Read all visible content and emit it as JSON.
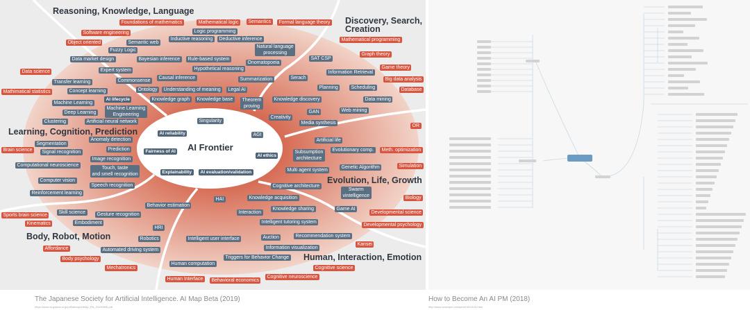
{
  "left_panel": {
    "headings": [
      "Reasoning, Knowledge, Language",
      "Discovery, Search,\nCreation",
      "Learning, Cognition, Prediction",
      "Evolution, Life, Growth",
      "Body, Robot, Motion",
      "Human, Interaction, Emotion"
    ],
    "center_title": "AI Frontier",
    "labels": [
      {
        "t": "Foundations of mathematics",
        "k": "r"
      },
      {
        "t": "Mathematical logic",
        "k": "r"
      },
      {
        "t": "Semantics",
        "k": "r"
      },
      {
        "t": "Formal language theory",
        "k": "r"
      },
      {
        "t": "Software engineering",
        "k": "r"
      },
      {
        "t": "Logic programming",
        "k": "b"
      },
      {
        "t": "Inductive reasoning",
        "k": "b"
      },
      {
        "t": "Deductive inference",
        "k": "b"
      },
      {
        "t": "Object oriented",
        "k": "r"
      },
      {
        "t": "Semantic web",
        "k": "b"
      },
      {
        "t": "Fuzzy Logic",
        "k": "b"
      },
      {
        "t": "Natural language\nprocessing",
        "k": "b"
      },
      {
        "t": "Data market design",
        "k": "b"
      },
      {
        "t": "Bayesian inference",
        "k": "b"
      },
      {
        "t": "Rule-based system",
        "k": "b"
      },
      {
        "t": "Onomatopoeia",
        "k": "b"
      },
      {
        "t": "SAT CSP",
        "k": "b"
      },
      {
        "t": "Hypothetical reasoning",
        "k": "b"
      },
      {
        "t": "Expert system",
        "k": "b"
      },
      {
        "t": "Data science",
        "k": "r"
      },
      {
        "t": "Summarization",
        "k": "b"
      },
      {
        "t": "Serach",
        "k": "b"
      },
      {
        "t": "Information Retrieval",
        "k": "b"
      },
      {
        "t": "Game theory",
        "k": "r"
      },
      {
        "t": "Mathematical programming",
        "k": "r"
      },
      {
        "t": "Graph theory",
        "k": "r"
      },
      {
        "t": "Big data analysis",
        "k": "r"
      },
      {
        "t": "Database",
        "k": "r"
      },
      {
        "t": "Transfer learning",
        "k": "b"
      },
      {
        "t": "Commonsense",
        "k": "b"
      },
      {
        "t": "Causal inference",
        "k": "b"
      },
      {
        "t": "Planning",
        "k": "b"
      },
      {
        "t": "Scheduling",
        "k": "b"
      },
      {
        "t": "Mathimatical statistics",
        "k": "r"
      },
      {
        "t": "Concept learning",
        "k": "b"
      },
      {
        "t": "Ontology",
        "k": "b"
      },
      {
        "t": "Understanding of meaning",
        "k": "b"
      },
      {
        "t": "Legal AI",
        "k": "b"
      },
      {
        "t": "Machine Learning",
        "k": "b"
      },
      {
        "t": "AI lifecycle",
        "k": "w"
      },
      {
        "t": "Knowledge graph",
        "k": "b"
      },
      {
        "t": "Knowledge base",
        "k": "b"
      },
      {
        "t": "Theorem\nproving",
        "k": "b"
      },
      {
        "t": "Knowledge discovery",
        "k": "b"
      },
      {
        "t": "Data mining",
        "k": "b"
      },
      {
        "t": "Machine Learning\nEngineering",
        "k": "b"
      },
      {
        "t": "Deep Learning",
        "k": "b"
      },
      {
        "t": "GAN",
        "k": "b"
      },
      {
        "t": "Web mining",
        "k": "b"
      },
      {
        "t": "Clustering",
        "k": "b"
      },
      {
        "t": "Artificial neural network",
        "k": "b"
      },
      {
        "t": "Singularity",
        "k": "b"
      },
      {
        "t": "Creativity",
        "k": "b"
      },
      {
        "t": "Media synthesis",
        "k": "b"
      },
      {
        "t": "OR",
        "k": "r"
      },
      {
        "t": "AI reliability",
        "k": "w"
      },
      {
        "t": "AGI",
        "k": "b"
      },
      {
        "t": "Artificial life",
        "k": "b"
      },
      {
        "t": "Segmentation",
        "k": "b"
      },
      {
        "t": "Anomaly detection",
        "k": "b"
      },
      {
        "t": "Brain science",
        "k": "r"
      },
      {
        "t": "Prediction",
        "k": "b"
      },
      {
        "t": "Fairness of AI",
        "k": "w"
      },
      {
        "t": "Signal recognition",
        "k": "b"
      },
      {
        "t": "Subsumption\narchitecture",
        "k": "b"
      },
      {
        "t": "Evolutionary comp.",
        "k": "b"
      },
      {
        "t": "Meth. optimization",
        "k": "r"
      },
      {
        "t": "AI ethics",
        "k": "w"
      },
      {
        "t": "Image recognition",
        "k": "b"
      },
      {
        "t": "Computational neuroscience",
        "k": "b"
      },
      {
        "t": "Touch, taste\nand smell recognition",
        "k": "b"
      },
      {
        "t": "Multi agent system",
        "k": "b"
      },
      {
        "t": "Genetic Algorithm",
        "k": "b"
      },
      {
        "t": "Simulation",
        "k": "r"
      },
      {
        "t": "Explainability",
        "k": "w"
      },
      {
        "t": "AI evaluation/validation",
        "k": "w"
      },
      {
        "t": "Computer vision",
        "k": "b"
      },
      {
        "t": "Speech recognition",
        "k": "b"
      },
      {
        "t": "Cognitive architecture",
        "k": "b"
      },
      {
        "t": "Swarm\nvintelligence",
        "k": "b"
      },
      {
        "t": "Reinforcement learning",
        "k": "b"
      },
      {
        "t": "HAI",
        "k": "b"
      },
      {
        "t": "Knowledge acquisition",
        "k": "b"
      },
      {
        "t": "Biology",
        "k": "r"
      },
      {
        "t": "Behavior estimation",
        "k": "b"
      },
      {
        "t": "Game AI",
        "k": "b"
      },
      {
        "t": "Knowledge sharing",
        "k": "b"
      },
      {
        "t": "Skill science",
        "k": "b"
      },
      {
        "t": "Sports brain science",
        "k": "r"
      },
      {
        "t": "Gesture recognition",
        "k": "b"
      },
      {
        "t": "Interaction",
        "k": "b"
      },
      {
        "t": "Developmental science",
        "k": "r"
      },
      {
        "t": "Kinematics",
        "k": "r"
      },
      {
        "t": "Embodiment",
        "k": "b"
      },
      {
        "t": "Intelligent tutoring system",
        "k": "b"
      },
      {
        "t": "Developmental psychology",
        "k": "r"
      },
      {
        "t": "HRI",
        "k": "b"
      },
      {
        "t": "Robotics",
        "k": "b"
      },
      {
        "t": "Intelligent user interface",
        "k": "b"
      },
      {
        "t": "Auction",
        "k": "b"
      },
      {
        "t": "Recommendation system",
        "k": "b"
      },
      {
        "t": "Kansei",
        "k": "r"
      },
      {
        "t": "Affordance",
        "k": "r"
      },
      {
        "t": "Automated driving system",
        "k": "b"
      },
      {
        "t": "Information visualization",
        "k": "b"
      },
      {
        "t": "Triggers for Behavior Change",
        "k": "b"
      },
      {
        "t": "Body psychology",
        "k": "r"
      },
      {
        "t": "Human computation",
        "k": "b"
      },
      {
        "t": "Mechatronics",
        "k": "r"
      },
      {
        "t": "Cognitive science",
        "k": "r"
      },
      {
        "t": "Human Interface",
        "k": "r"
      },
      {
        "t": "Behavioral economics",
        "k": "r"
      },
      {
        "t": "Cognitive neuroscience",
        "k": "r"
      }
    ],
    "colors": {
      "research_field": "#d9553f",
      "ai_topic": "#5b6f83",
      "background": "#ececec"
    },
    "caption": "The Japanese Society for Artificial Intelligence. AI Map Beta (2019)",
    "caption_url": "https://www.ai-gakkai.or.jp/pdf/aimap/AIMap_EN_20190606.pdf"
  },
  "right_panel": {
    "caption": "How to Become An AI PM (2018)",
    "caption_url": "http://www.woshipm.com/pmd/1501194.html",
    "root_color": "#6c9cc4"
  }
}
